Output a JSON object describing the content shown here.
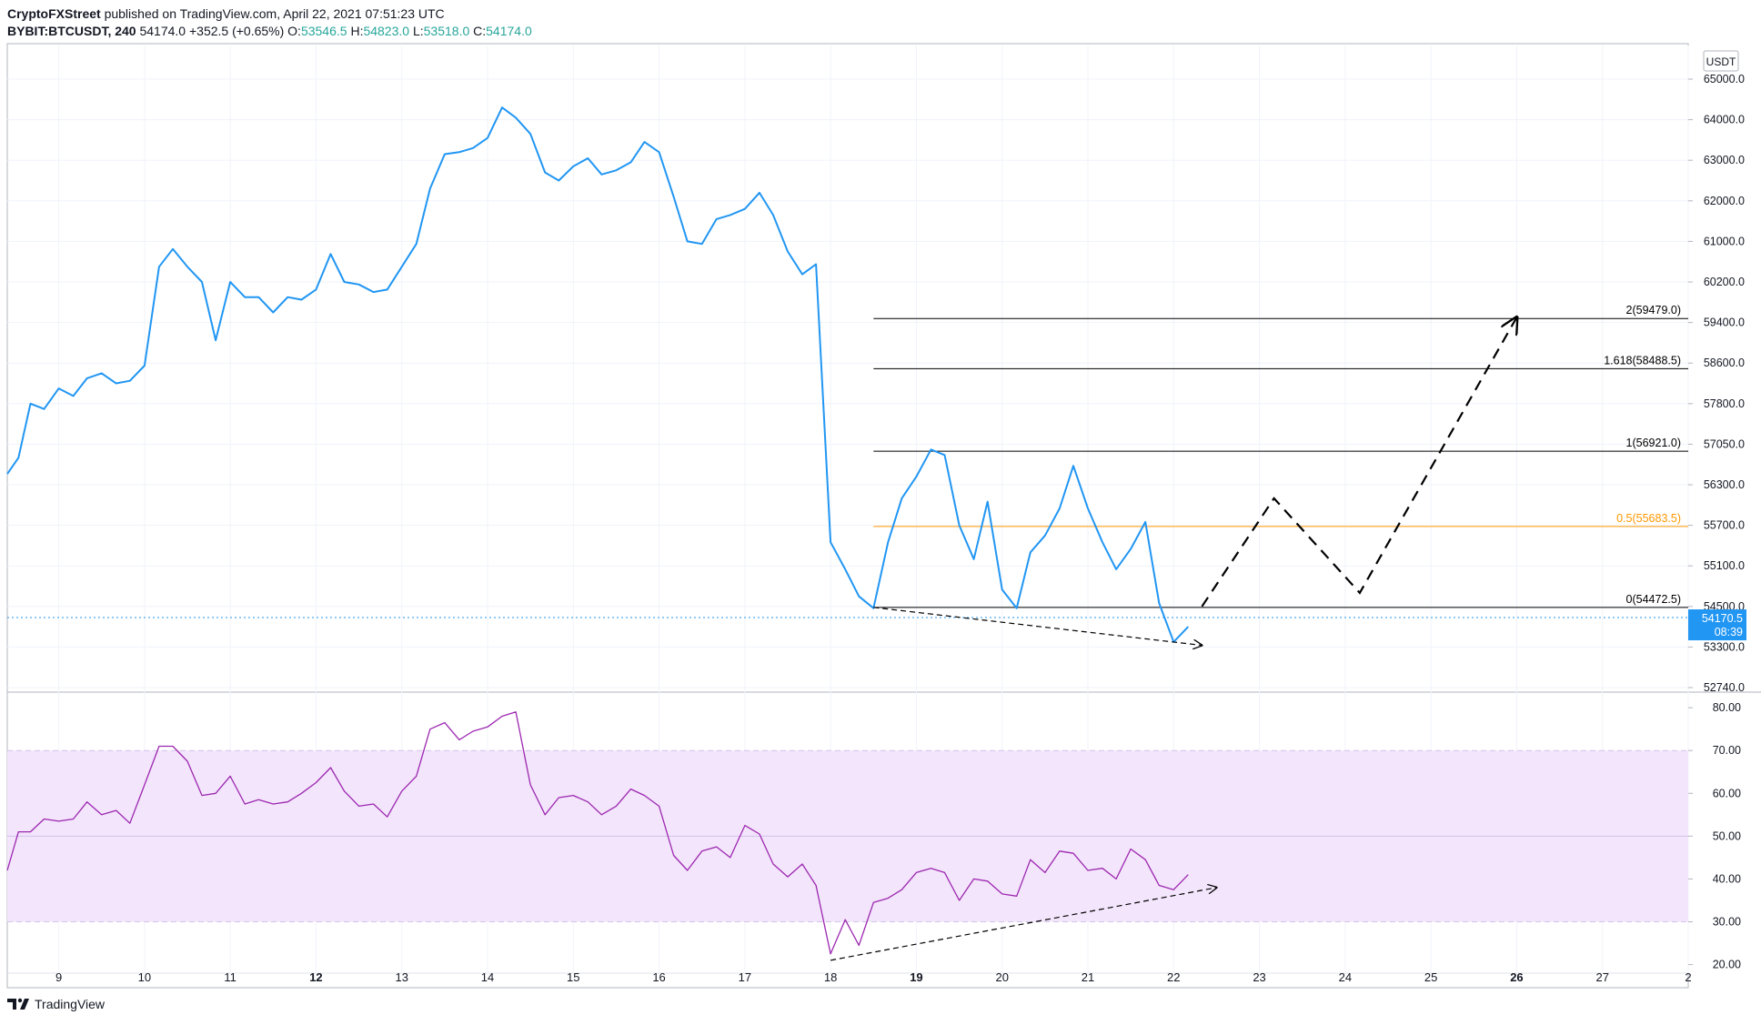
{
  "header": {
    "publisher": "CryptoFXStreet",
    "published_text": "published on TradingView.com, April 22, 2021 07:51:23 UTC",
    "symbol": "BYBIT:BTCUSDT, 240",
    "last": "54174.0",
    "change": "+352.5 (+0.65%)",
    "o_label": "O:",
    "o_value": "53546.5",
    "h_label": "H:",
    "h_value": "54823.0",
    "l_label": "L:",
    "l_value": "53518.0",
    "c_label": "C:",
    "c_value": "54174.0"
  },
  "footer": {
    "brand": "TradingView",
    "logo_icon": "tradingview-logo-icon"
  },
  "colors": {
    "price_line": "#2196f3",
    "rsi_line": "#9c27b0",
    "rsi_band": "#f3e5fb",
    "fib_line": "#000000",
    "fib_half": "#ff9800",
    "grid": "#f0f3fa",
    "current_tag": "#2196f3"
  },
  "chart_data": [
    {
      "type": "line",
      "title": "BYBIT:BTCUSDT, 240",
      "currency_label": "USDT",
      "x_ticks": [
        "9",
        "10",
        "11",
        "12",
        "13",
        "14",
        "15",
        "16",
        "17",
        "18",
        "19",
        "20",
        "21",
        "22",
        "23",
        "24",
        "25",
        "26",
        "27",
        "2"
      ],
      "x_unit": "day of April 2021 (decimal)",
      "x_range": [
        8.4,
        28.0
      ],
      "y_ticks": [
        65000.0,
        64000.0,
        63000.0,
        62000.0,
        61000.0,
        60200.0,
        59400.0,
        58600.0,
        57800.0,
        57050.0,
        56300.0,
        55700.0,
        55100.0,
        54500.0,
        53300.0,
        52740.0
      ],
      "y_tick_labels": [
        "65000.0",
        "64000.0",
        "63000.0",
        "62000.0",
        "61000.0",
        "60200.0",
        "59400.0",
        "58600.0",
        "57800.0",
        "57050.0",
        "56300.0",
        "55700.0",
        "55100.0",
        "54500.0",
        "53300.0",
        "52740.0"
      ],
      "series": [
        {
          "x": [
            8.4,
            8.53,
            8.67,
            8.83,
            9.0,
            9.17,
            9.33,
            9.5,
            9.67,
            9.83,
            10.0,
            10.17,
            10.33,
            10.5,
            10.67,
            10.83,
            11.0,
            11.17,
            11.33,
            11.5,
            11.67,
            11.83,
            12.0,
            12.17,
            12.33,
            12.5,
            12.67,
            12.83,
            13.0,
            13.17,
            13.33,
            13.5,
            13.67,
            13.83,
            14.0,
            14.17,
            14.33,
            14.5,
            14.67,
            14.83,
            15.0,
            15.17,
            15.33,
            15.5,
            15.67,
            15.83,
            16.0,
            16.17,
            16.33,
            16.5,
            16.67,
            16.83,
            17.0,
            17.17,
            17.33,
            17.5,
            17.67,
            17.83,
            18.0,
            18.17,
            18.33,
            18.5,
            18.67,
            18.83,
            19.0,
            19.17,
            19.33,
            19.5,
            19.67,
            19.83,
            20.0,
            20.17,
            20.33,
            20.5,
            20.67,
            20.83,
            21.0,
            21.17,
            21.33,
            21.5,
            21.67,
            21.83,
            22.0,
            22.17
          ],
          "y": [
            56500,
            56800,
            57800,
            57700,
            58100,
            57950,
            58300,
            58400,
            58200,
            58250,
            58550,
            60500,
            60850,
            60500,
            60200,
            59050,
            60200,
            59900,
            59900,
            59600,
            59900,
            59850,
            60050,
            60750,
            60200,
            60150,
            60000,
            60050,
            60500,
            60950,
            62300,
            63150,
            63200,
            63300,
            63550,
            64300,
            64050,
            63650,
            62700,
            62500,
            62850,
            63050,
            62650,
            62750,
            62950,
            63450,
            63200,
            62100,
            61000,
            60950,
            61550,
            61650,
            61800,
            62200,
            61650,
            60800,
            60350,
            60550,
            55450,
            55050,
            54650,
            54450,
            55450,
            56100,
            56450,
            56950,
            56850,
            55700,
            55200,
            56050,
            54750,
            54450,
            55300,
            55550,
            55950,
            56650,
            55950,
            55450,
            55050,
            55350,
            55750,
            54550,
            53450,
            53900
          ],
          "name": ""
        }
      ],
      "fib_levels": [
        {
          "label": "2(59479.0)",
          "value": 59479.0
        },
        {
          "label": "1.618(58488.5)",
          "value": 58488.5
        },
        {
          "label": "1(56921.0)",
          "value": 56921.0
        },
        {
          "label": "0.5(55683.5)",
          "value": 55683.5
        },
        {
          "label": "0(54472.5)",
          "value": 54472.5
        }
      ],
      "fib_x_range": [
        18.5,
        28.0
      ],
      "current_price": {
        "value": 54170.5,
        "label": "54170.5",
        "timer": "08:39"
      },
      "projection_path": {
        "x": [
          22.33,
          23.17,
          24.17,
          26.0
        ],
        "y": [
          54500,
          56100,
          54700,
          59500
        ]
      },
      "divergence_trendline": {
        "x": [
          18.5,
          22.33
        ],
        "y": [
          54472.5,
          53350
        ]
      }
    },
    {
      "type": "line",
      "title": "",
      "x_range": [
        8.4,
        28.0
      ],
      "y_ticks": [
        80.0,
        70.0,
        60.0,
        50.0,
        40.0,
        30.0,
        20.0
      ],
      "y_tick_labels": [
        "80.00",
        "70.00",
        "60.00",
        "50.00",
        "40.00",
        "30.00",
        "20.00"
      ],
      "y_range": [
        18,
        83
      ],
      "band": [
        30,
        70
      ],
      "series": [
        {
          "x": [
            8.4,
            8.53,
            8.67,
            8.83,
            9.0,
            9.17,
            9.33,
            9.5,
            9.67,
            9.83,
            10.0,
            10.17,
            10.33,
            10.5,
            10.67,
            10.83,
            11.0,
            11.17,
            11.33,
            11.5,
            11.67,
            11.83,
            12.0,
            12.17,
            12.33,
            12.5,
            12.67,
            12.83,
            13.0,
            13.17,
            13.33,
            13.5,
            13.67,
            13.83,
            14.0,
            14.17,
            14.33,
            14.5,
            14.67,
            14.83,
            15.0,
            15.17,
            15.33,
            15.5,
            15.67,
            15.83,
            16.0,
            16.17,
            16.33,
            16.5,
            16.67,
            16.83,
            17.0,
            17.17,
            17.33,
            17.5,
            17.67,
            17.83,
            18.0,
            18.17,
            18.33,
            18.5,
            18.67,
            18.83,
            19.0,
            19.17,
            19.33,
            19.5,
            19.67,
            19.83,
            20.0,
            20.17,
            20.33,
            20.5,
            20.67,
            20.83,
            21.0,
            21.17,
            21.33,
            21.5,
            21.67,
            21.83,
            22.0,
            22.17
          ],
          "y": [
            42,
            51,
            51,
            54,
            53.5,
            54,
            58,
            55,
            56,
            53,
            62,
            71,
            71,
            67.5,
            59.5,
            60,
            64,
            57.5,
            58.5,
            57.5,
            58,
            60,
            62.5,
            66,
            60.5,
            57,
            57.5,
            54.5,
            60.5,
            64,
            75,
            76.5,
            72.5,
            74.5,
            75.5,
            78,
            79,
            62,
            55,
            59,
            59.5,
            58,
            55,
            57,
            61,
            59.5,
            57,
            45.5,
            42,
            46.5,
            47.5,
            45,
            52.5,
            50.5,
            43.5,
            40.5,
            43.5,
            38.5,
            22.5,
            30.5,
            24.5,
            34.5,
            35.5,
            37.5,
            41.5,
            42.5,
            41.5,
            35,
            40,
            39.5,
            36.5,
            36,
            44.5,
            41.5,
            46.5,
            46,
            42,
            42.5,
            40,
            47,
            44.5,
            38.5,
            37.5,
            41
          ],
          "name": ""
        }
      ],
      "divergence_trendline": {
        "x": [
          18.0,
          22.5
        ],
        "y": [
          21,
          38
        ]
      }
    }
  ]
}
